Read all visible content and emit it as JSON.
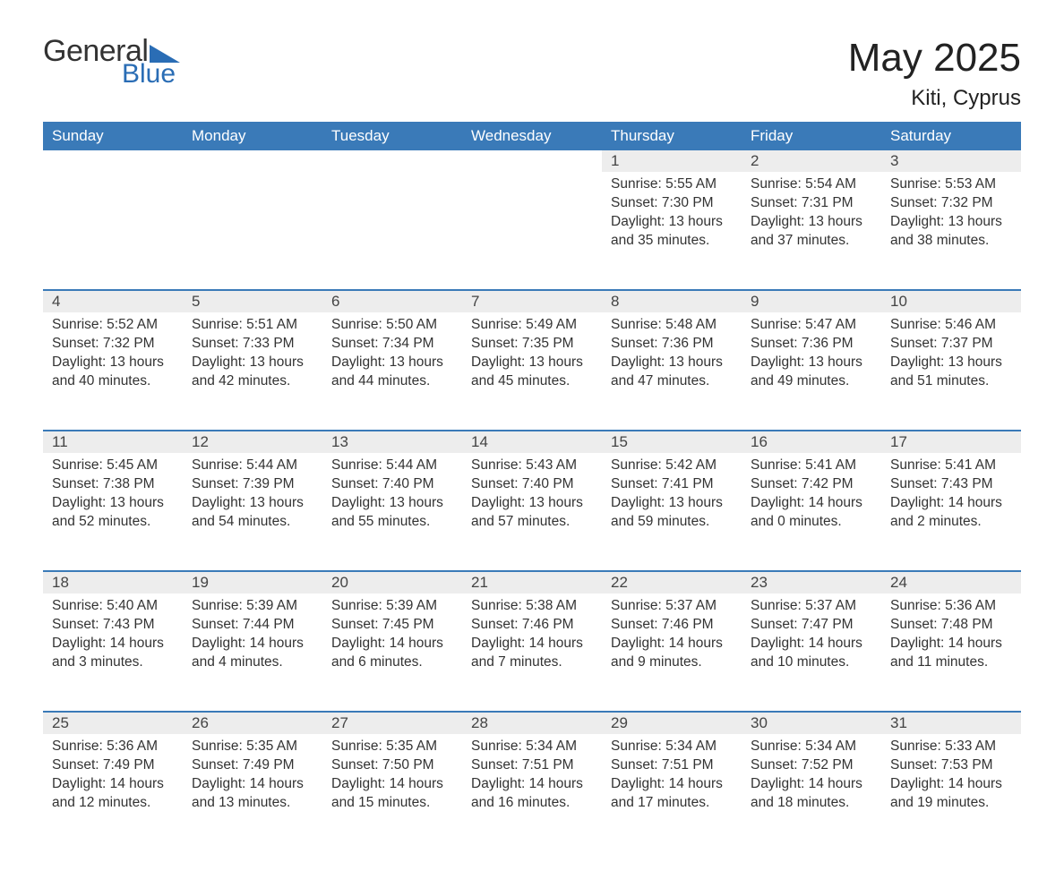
{
  "brand": {
    "word1": "General",
    "word2": "Blue"
  },
  "title": "May 2025",
  "location": "Kiti, Cyprus",
  "colors": {
    "header_bg": "#3a7ab8",
    "header_text": "#ffffff",
    "daynum_bg": "#ededed",
    "row_border": "#3a7ab8",
    "brand_blue": "#2a6db5",
    "text": "#333333",
    "background": "#ffffff"
  },
  "fontsize": {
    "title": 44,
    "subtitle": 24,
    "dayheader": 17,
    "daynum": 17,
    "body": 15.5
  },
  "day_headers": [
    "Sunday",
    "Monday",
    "Tuesday",
    "Wednesday",
    "Thursday",
    "Friday",
    "Saturday"
  ],
  "weeks": [
    [
      null,
      null,
      null,
      null,
      {
        "n": "1",
        "sr": "5:55 AM",
        "ss": "7:30 PM",
        "dh": "13",
        "dm": "35"
      },
      {
        "n": "2",
        "sr": "5:54 AM",
        "ss": "7:31 PM",
        "dh": "13",
        "dm": "37"
      },
      {
        "n": "3",
        "sr": "5:53 AM",
        "ss": "7:32 PM",
        "dh": "13",
        "dm": "38"
      }
    ],
    [
      {
        "n": "4",
        "sr": "5:52 AM",
        "ss": "7:32 PM",
        "dh": "13",
        "dm": "40"
      },
      {
        "n": "5",
        "sr": "5:51 AM",
        "ss": "7:33 PM",
        "dh": "13",
        "dm": "42"
      },
      {
        "n": "6",
        "sr": "5:50 AM",
        "ss": "7:34 PM",
        "dh": "13",
        "dm": "44"
      },
      {
        "n": "7",
        "sr": "5:49 AM",
        "ss": "7:35 PM",
        "dh": "13",
        "dm": "45"
      },
      {
        "n": "8",
        "sr": "5:48 AM",
        "ss": "7:36 PM",
        "dh": "13",
        "dm": "47"
      },
      {
        "n": "9",
        "sr": "5:47 AM",
        "ss": "7:36 PM",
        "dh": "13",
        "dm": "49"
      },
      {
        "n": "10",
        "sr": "5:46 AM",
        "ss": "7:37 PM",
        "dh": "13",
        "dm": "51"
      }
    ],
    [
      {
        "n": "11",
        "sr": "5:45 AM",
        "ss": "7:38 PM",
        "dh": "13",
        "dm": "52"
      },
      {
        "n": "12",
        "sr": "5:44 AM",
        "ss": "7:39 PM",
        "dh": "13",
        "dm": "54"
      },
      {
        "n": "13",
        "sr": "5:44 AM",
        "ss": "7:40 PM",
        "dh": "13",
        "dm": "55"
      },
      {
        "n": "14",
        "sr": "5:43 AM",
        "ss": "7:40 PM",
        "dh": "13",
        "dm": "57"
      },
      {
        "n": "15",
        "sr": "5:42 AM",
        "ss": "7:41 PM",
        "dh": "13",
        "dm": "59"
      },
      {
        "n": "16",
        "sr": "5:41 AM",
        "ss": "7:42 PM",
        "dh": "14",
        "dm": "0"
      },
      {
        "n": "17",
        "sr": "5:41 AM",
        "ss": "7:43 PM",
        "dh": "14",
        "dm": "2"
      }
    ],
    [
      {
        "n": "18",
        "sr": "5:40 AM",
        "ss": "7:43 PM",
        "dh": "14",
        "dm": "3"
      },
      {
        "n": "19",
        "sr": "5:39 AM",
        "ss": "7:44 PM",
        "dh": "14",
        "dm": "4"
      },
      {
        "n": "20",
        "sr": "5:39 AM",
        "ss": "7:45 PM",
        "dh": "14",
        "dm": "6"
      },
      {
        "n": "21",
        "sr": "5:38 AM",
        "ss": "7:46 PM",
        "dh": "14",
        "dm": "7"
      },
      {
        "n": "22",
        "sr": "5:37 AM",
        "ss": "7:46 PM",
        "dh": "14",
        "dm": "9"
      },
      {
        "n": "23",
        "sr": "5:37 AM",
        "ss": "7:47 PM",
        "dh": "14",
        "dm": "10"
      },
      {
        "n": "24",
        "sr": "5:36 AM",
        "ss": "7:48 PM",
        "dh": "14",
        "dm": "11"
      }
    ],
    [
      {
        "n": "25",
        "sr": "5:36 AM",
        "ss": "7:49 PM",
        "dh": "14",
        "dm": "12"
      },
      {
        "n": "26",
        "sr": "5:35 AM",
        "ss": "7:49 PM",
        "dh": "14",
        "dm": "13"
      },
      {
        "n": "27",
        "sr": "5:35 AM",
        "ss": "7:50 PM",
        "dh": "14",
        "dm": "15"
      },
      {
        "n": "28",
        "sr": "5:34 AM",
        "ss": "7:51 PM",
        "dh": "14",
        "dm": "16"
      },
      {
        "n": "29",
        "sr": "5:34 AM",
        "ss": "7:51 PM",
        "dh": "14",
        "dm": "17"
      },
      {
        "n": "30",
        "sr": "5:34 AM",
        "ss": "7:52 PM",
        "dh": "14",
        "dm": "18"
      },
      {
        "n": "31",
        "sr": "5:33 AM",
        "ss": "7:53 PM",
        "dh": "14",
        "dm": "19"
      }
    ]
  ],
  "labels": {
    "sunrise": "Sunrise: ",
    "sunset": "Sunset: ",
    "daylight_pre": "Daylight: ",
    "hours": " hours",
    "and": " and ",
    "minutes": " minutes."
  }
}
